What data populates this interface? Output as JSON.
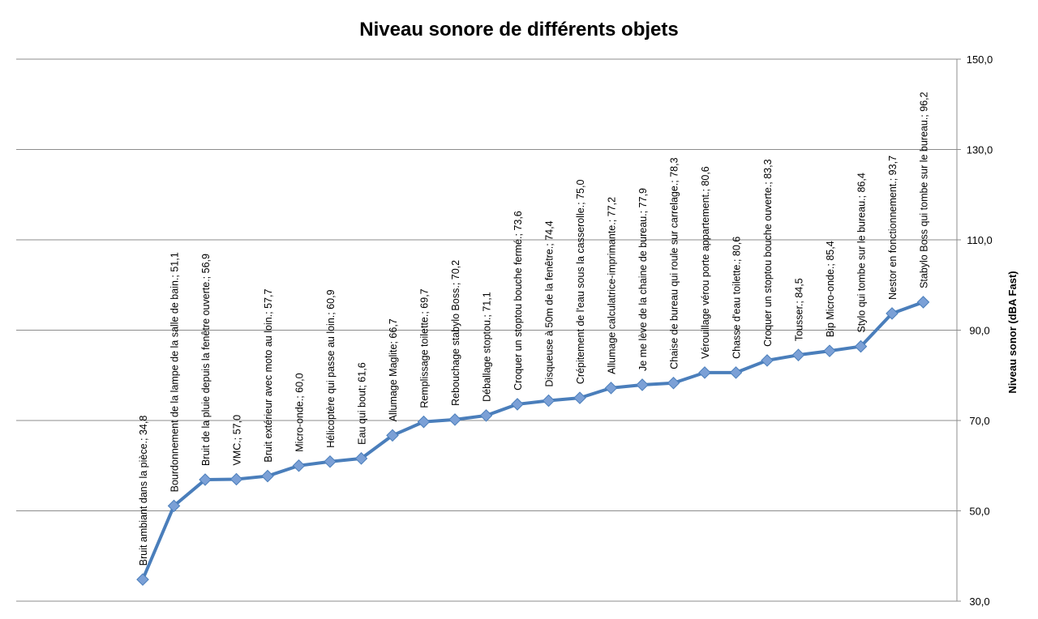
{
  "chart_data": {
    "type": "line",
    "title": "Niveau sonore de différents objets",
    "ylabel": "Niveau sonor (dBA Fast)",
    "xlabel": "",
    "ylim": [
      30,
      150
    ],
    "yticks": [
      "30,0",
      "50,0",
      "70,0",
      "90,0",
      "110,0",
      "130,0",
      "150,0"
    ],
    "ytick_values": [
      30,
      50,
      70,
      90,
      110,
      130,
      150
    ],
    "grid": true,
    "legend": "none",
    "y_axis_side": "right",
    "series_color": "#4a7ebb",
    "marker_color": "#7ba0d6",
    "points": [
      {
        "label": "Bruit ambiant dans la pièce.; 34,8",
        "value": 34.8
      },
      {
        "label": "Bourdonnement de la lampe de la salle de bain.; 51,1",
        "value": 51.1
      },
      {
        "label": "Bruit de la pluie depuis la fenêtre ouverte.; 56,9",
        "value": 56.9
      },
      {
        "label": "VMC.; 57,0",
        "value": 57.0
      },
      {
        "label": "Bruit extérieur avec moto au loin.; 57,7",
        "value": 57.7
      },
      {
        "label": "Micro-onde.; 60,0",
        "value": 60.0
      },
      {
        "label": "Hélicoptère qui passe au loin.; 60,9",
        "value": 60.9
      },
      {
        "label": "Eau qui bout; 61,6",
        "value": 61.6
      },
      {
        "label": "Allumage Maglite; 66,7",
        "value": 66.7
      },
      {
        "label": "Remplissage toilette.; 69,7",
        "value": 69.7
      },
      {
        "label": "Rebouchage stabylo Boss.; 70,2",
        "value": 70.2
      },
      {
        "label": "Déballage stoptou.; 71,1",
        "value": 71.1
      },
      {
        "label": "Croquer un stoptou bouche fermé.; 73,6",
        "value": 73.6
      },
      {
        "label": "Disqueuse à 50m de la fenêtre.; 74,4",
        "value": 74.4
      },
      {
        "label": "Crépitement de l'eau sous la casserolle.; 75,0",
        "value": 75.0
      },
      {
        "label": "Allumage calculatrice-imprimante.; 77,2",
        "value": 77.2
      },
      {
        "label": "Je me lève de la chaine de bureau.; 77,9",
        "value": 77.9
      },
      {
        "label": "Chaise de bureau qui roule sur carrelage.; 78,3",
        "value": 78.3
      },
      {
        "label": "Vérouillage vérou porte appartement.; 80,6",
        "value": 80.6
      },
      {
        "label": "Chasse d'eau toilette.; 80,6",
        "value": 80.6
      },
      {
        "label": "Croquer un stoptou bouche ouverte.; 83,3",
        "value": 83.3
      },
      {
        "label": "Tousser.; 84,5",
        "value": 84.5
      },
      {
        "label": "Bip Micro-onde.; 85,4",
        "value": 85.4
      },
      {
        "label": "Stylo qui tombe sur le bureau.; 86,4",
        "value": 86.4
      },
      {
        "label": "Nestor en fonctionnement.; 93,7",
        "value": 93.7
      },
      {
        "label": "Stabylo Boss qui tombe sur le bureau.; 96,2",
        "value": 96.2
      }
    ]
  }
}
